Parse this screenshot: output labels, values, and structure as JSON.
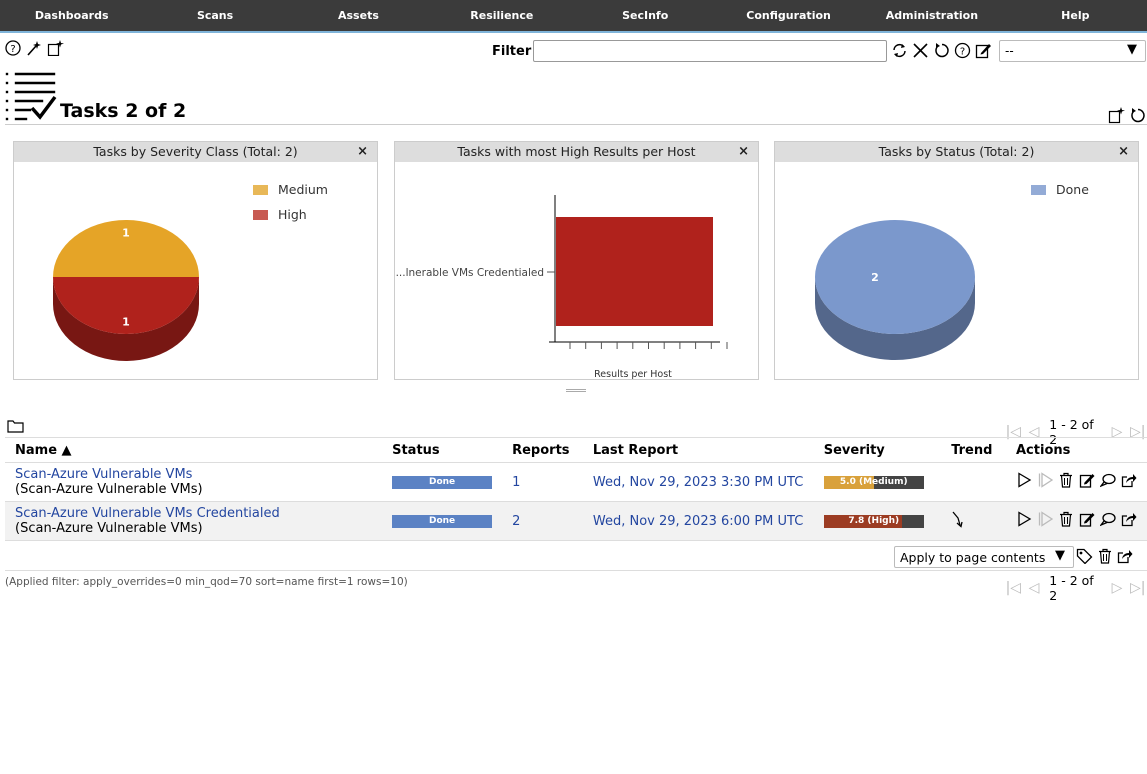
{
  "nav": {
    "items": [
      "Dashboards",
      "Scans",
      "Assets",
      "Resilience",
      "SecInfo",
      "Configuration",
      "Administration",
      "Help"
    ]
  },
  "filter": {
    "label": "Filter",
    "value": "",
    "select_value": "--"
  },
  "page": {
    "title": "Tasks 2 of 2"
  },
  "panels": {
    "severity": {
      "title": "Tasks by Severity Class (Total: 2)",
      "close": "×"
    },
    "high_results": {
      "title": "Tasks with most High Results per Host",
      "close": "×"
    },
    "status": {
      "title": "Tasks by Status (Total: 2)",
      "close": "×"
    }
  },
  "chart_data": [
    {
      "type": "pie",
      "title": "Tasks by Severity Class (Total: 2)",
      "labels": [
        "Medium",
        "High"
      ],
      "values": [
        1,
        1
      ],
      "colors": [
        "#e5a427",
        "#b0221c"
      ],
      "legend_colors": [
        "#e8b858",
        "#c85a52"
      ],
      "legend": "top-right"
    },
    {
      "type": "bar",
      "title": "Tasks with most High Results per Host",
      "categories": [
        "...lnerable VMs Credentialed"
      ],
      "values": [
        1
      ],
      "xlabel": "Results per Host",
      "ylabel": "",
      "orientation": "horizontal",
      "color": "#b0221c"
    },
    {
      "type": "pie",
      "title": "Tasks by Status (Total: 2)",
      "labels": [
        "Done"
      ],
      "values": [
        2
      ],
      "colors": [
        "#7b98cc"
      ],
      "legend": "top-right"
    }
  ],
  "pager": {
    "text": "1 - 2 of 2"
  },
  "table": {
    "headers": {
      "name": "Name ▲",
      "status": "Status",
      "reports": "Reports",
      "last_report": "Last Report",
      "severity": "Severity",
      "trend": "Trend",
      "actions": "Actions"
    },
    "rows": [
      {
        "name": "Scan-Azure Vulnerable VMs",
        "comment": "(Scan-Azure Vulnerable VMs)",
        "status": "Done",
        "status_progress": 100,
        "reports": "1",
        "last_report": "Wed, Nov 29, 2023 3:30 PM UTC",
        "severity": "5.0 (Medium)",
        "severity_score": 5.0,
        "severity_color": "#d9a13b",
        "trend": ""
      },
      {
        "name": "Scan-Azure Vulnerable VMs Credentialed",
        "comment": "(Scan-Azure Vulnerable VMs)",
        "status": "Done",
        "status_progress": 100,
        "reports": "2",
        "last_report": "Wed, Nov 29, 2023 6:00 PM UTC",
        "severity": "7.8 (High)",
        "severity_score": 7.8,
        "severity_color": "#9c3c23",
        "trend": "down-arrow-icon"
      }
    ]
  },
  "bulk": {
    "select_value": "Apply to page contents"
  },
  "applied_filter": "(Applied filter: apply_overrides=0 min_qod=70 sort=name first=1 rows=10)"
}
